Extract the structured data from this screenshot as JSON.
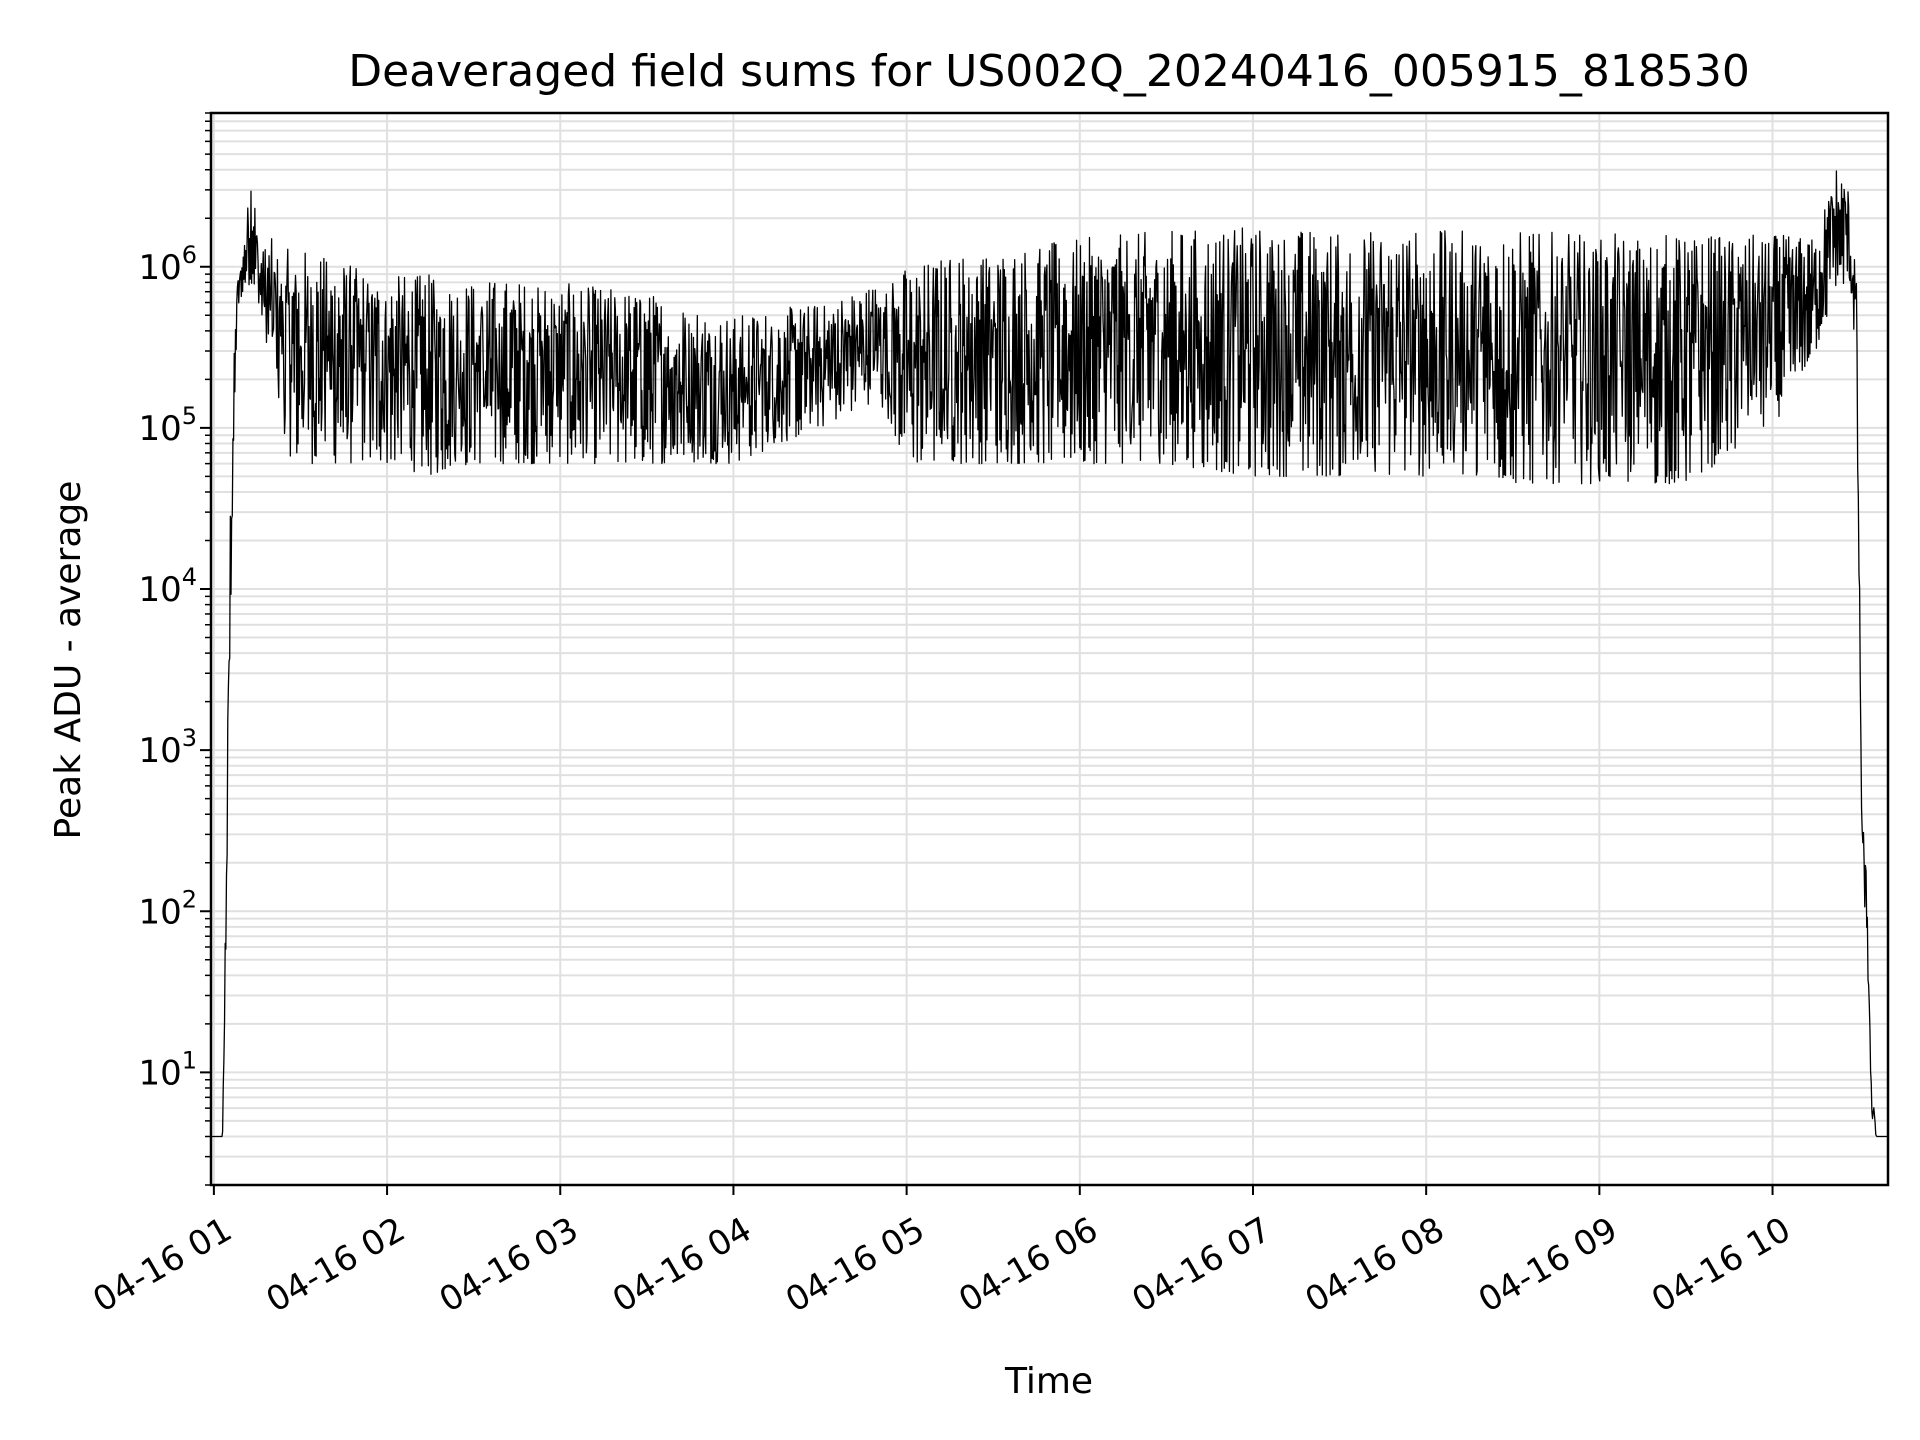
{
  "chart_data": {
    "type": "line",
    "title": "Deaveraged field sums for US002Q_20240416_005915_818530",
    "xlabel": "Time",
    "ylabel": "Peak ADU - average",
    "x_scale": "time",
    "y_scale": "log",
    "xlim": [
      "2024-04-16 00:59",
      "2024-04-16 10:40"
    ],
    "ylim": [
      2,
      9000000
    ],
    "grid": true,
    "line_color": "#000000",
    "grid_color": "#e0e0e0",
    "x_ticks": [
      {
        "time": "2024-04-16 01:00",
        "label": "04-16 01"
      },
      {
        "time": "2024-04-16 02:00",
        "label": "04-16 02"
      },
      {
        "time": "2024-04-16 03:00",
        "label": "04-16 03"
      },
      {
        "time": "2024-04-16 04:00",
        "label": "04-16 04"
      },
      {
        "time": "2024-04-16 05:00",
        "label": "04-16 05"
      },
      {
        "time": "2024-04-16 06:00",
        "label": "04-16 06"
      },
      {
        "time": "2024-04-16 07:00",
        "label": "04-16 07"
      },
      {
        "time": "2024-04-16 08:00",
        "label": "04-16 08"
      },
      {
        "time": "2024-04-16 09:00",
        "label": "04-16 09"
      },
      {
        "time": "2024-04-16 10:00",
        "label": "04-16 10"
      }
    ],
    "y_ticks": [
      {
        "value": 10,
        "base": "10",
        "exp": "1"
      },
      {
        "value": 100,
        "base": "10",
        "exp": "2"
      },
      {
        "value": 1000,
        "base": "10",
        "exp": "3"
      },
      {
        "value": 10000,
        "base": "10",
        "exp": "4"
      },
      {
        "value": 100000,
        "base": "10",
        "exp": "5"
      },
      {
        "value": 1000000,
        "base": "10",
        "exp": "6"
      }
    ],
    "series": [
      {
        "x": [
          "2024-04-16 00:59",
          "2024-04-16 01:03",
          "2024-04-16 01:04",
          "2024-04-16 01:06",
          "2024-04-16 01:08",
          "2024-04-16 01:10",
          "2024-04-16 01:13",
          "2024-04-16 01:16",
          "2024-04-16 01:20",
          "2024-04-16 01:25",
          "2024-04-16 01:30",
          "2024-04-16 01:40",
          "2024-04-16 01:50",
          "2024-04-16 02:00",
          "2024-04-16 02:15",
          "2024-04-16 02:30",
          "2024-04-16 03:00",
          "2024-04-16 03:30",
          "2024-04-16 04:00",
          "2024-04-16 04:30",
          "2024-04-16 04:50",
          "2024-04-16 05:00",
          "2024-04-16 05:15",
          "2024-04-16 05:30",
          "2024-04-16 06:00",
          "2024-04-16 06:30",
          "2024-04-16 07:00",
          "2024-04-16 07:30",
          "2024-04-16 08:00",
          "2024-04-16 08:30",
          "2024-04-16 09:00",
          "2024-04-16 09:30",
          "2024-04-16 10:00",
          "2024-04-16 10:15",
          "2024-04-16 10:22",
          "2024-04-16 10:26",
          "2024-04-16 10:29",
          "2024-04-16 10:31",
          "2024-04-16 10:33",
          "2024-04-16 10:34",
          "2024-04-16 10:36",
          "2024-04-16 10:40"
        ],
        "low": [
          4,
          4,
          30,
          10000,
          500000,
          700000,
          800000,
          500000,
          200000,
          70000,
          60000,
          60000,
          60000,
          60000,
          50000,
          60000,
          60000,
          60000,
          60000,
          100000,
          150000,
          60000,
          60000,
          60000,
          60000,
          60000,
          50000,
          50000,
          50000,
          45000,
          45000,
          45000,
          100000,
          300000,
          700000,
          800000,
          300000,
          200,
          40,
          5,
          4,
          4
        ],
        "high": [
          4,
          4,
          100,
          100000,
          800000,
          1200000,
          4500000,
          1300000,
          1500000,
          1300000,
          1300000,
          1200000,
          1000000,
          900000,
          900000,
          850000,
          800000,
          700000,
          500000,
          600000,
          800000,
          1000000,
          1200000,
          1300000,
          1500000,
          1700000,
          1800000,
          1700000,
          1700000,
          1700000,
          1600000,
          1600000,
          1600000,
          1500000,
          4300000,
          3400000,
          1000000,
          400,
          150,
          10,
          4,
          4
        ]
      }
    ]
  }
}
